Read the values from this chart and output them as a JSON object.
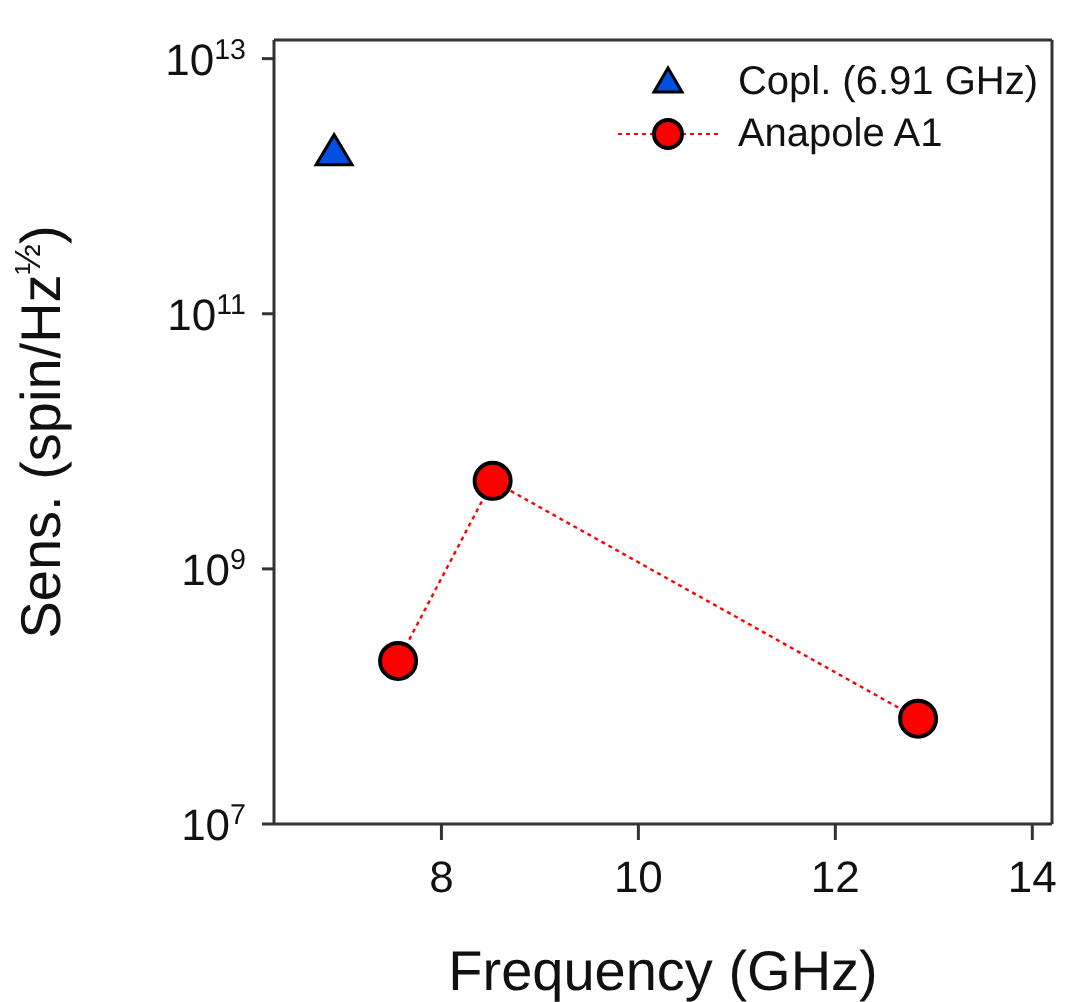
{
  "chart_data": {
    "type": "scatter",
    "xlabel": "Frequency (GHz)",
    "ylabel": "Sens. (spin/Hz$^{½}$)",
    "log": "y",
    "xlim": [
      6.3,
      14.2
    ],
    "xticks": [
      8,
      10,
      12,
      14
    ],
    "ylim": [
      10000000.0,
      14000000000000.0
    ],
    "yticks": [
      {
        "value": 10000000.0,
        "label": "10$^{7}$"
      },
      {
        "value": 1000000000.0,
        "label": "10$^{9}$"
      },
      {
        "value": 100000000000.0,
        "label": "10$^{11}$"
      },
      {
        "value": 10000000000000.0,
        "label": "10$^{13}$"
      }
    ],
    "grid": false,
    "legend": "top right",
    "series": [
      {
        "name": "Copl. (6.91 GHz)",
        "type": "scatter",
        "color": "#0050e0",
        "marker": "triangle",
        "x": [
          6.91
        ],
        "values": [
          1900000000000.0
        ]
      },
      {
        "name": "Anapole A1",
        "type": "line",
        "color": "#ff0000",
        "marker": "circle",
        "line_style": "dotted",
        "x": [
          7.56,
          8.52,
          12.84
        ],
        "values": [
          190000000.0,
          4900000000.0,
          67000000.0
        ]
      }
    ]
  }
}
